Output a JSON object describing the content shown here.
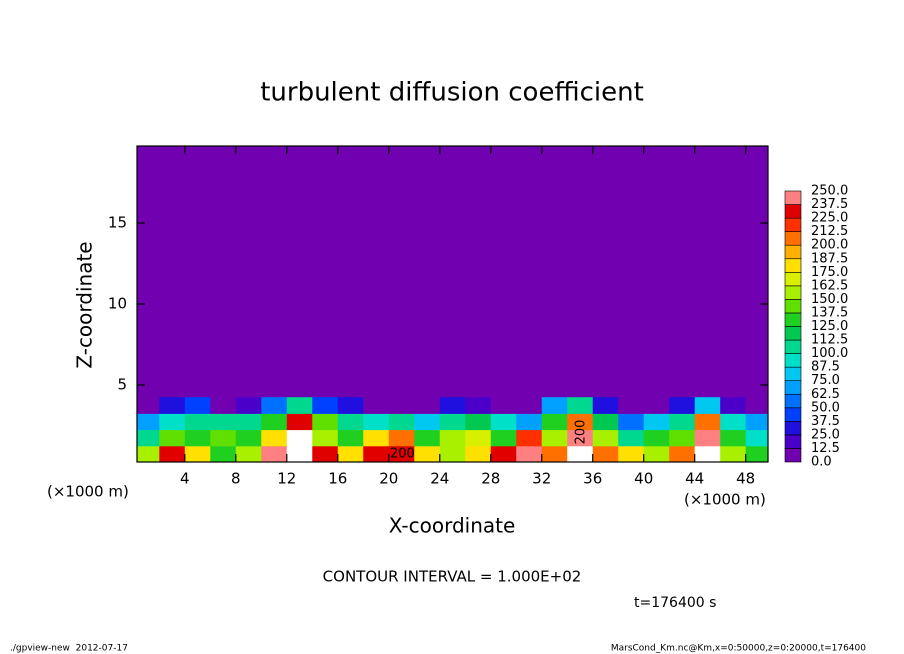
{
  "chart_data": {
    "type": "contour",
    "title": "turbulent diffusion coefficient",
    "xlabel": "X-coordinate",
    "ylabel": "Z-coordinate",
    "x_unit_label": "(×1000 m)",
    "xlim": [
      0.25,
      49.75
    ],
    "ylim": [
      0.25,
      19.75
    ],
    "xticks": [
      4,
      8,
      12,
      16,
      20,
      24,
      28,
      32,
      36,
      40,
      44,
      48
    ],
    "yticks": [
      5,
      10,
      15
    ],
    "levels": [
      {
        "value": 0,
        "label": "0.0"
      },
      12.5,
      {
        "value": 25,
        "label": "25.0"
      },
      37.5,
      {
        "value": 50,
        "label": "50.0"
      },
      62.5,
      {
        "value": 75,
        "label": "75.0"
      },
      87.5,
      {
        "value": 100,
        "label": "100.0"
      },
      112.5,
      {
        "value": 125,
        "label": "125.0"
      },
      137.5,
      {
        "value": 150,
        "label": "150.0"
      },
      162.5,
      {
        "value": 175,
        "label": "175.0"
      },
      187.5,
      {
        "value": 200,
        "label": "200.0"
      },
      212.5,
      {
        "value": 225,
        "label": "225.0"
      },
      237.5,
      {
        "value": 250,
        "label": "250.0"
      }
    ],
    "colors": [
      "#7000b0",
      "#4a00c8",
      "#2010e0",
      "#0040ff",
      "#0070ff",
      "#00a0ff",
      "#00c8f0",
      "#00e0c8",
      "#00d890",
      "#00c850",
      "#20d020",
      "#60e000",
      "#a8f000",
      "#d8f000",
      "#ffe000",
      "#ffb000",
      "#ff7000",
      "#ff3000",
      "#e00000",
      "#ff8080"
    ],
    "above_color": "#ffffff",
    "field": {
      "x": [
        1,
        3,
        5,
        7,
        9,
        11,
        13,
        15,
        17,
        19,
        21,
        23,
        25,
        27,
        29,
        31,
        33,
        35,
        37,
        39,
        41,
        43,
        45,
        47,
        49
      ],
      "z": [
        0.75,
        1.75,
        2.75,
        3.75
      ],
      "values": [
        [
          150,
          225,
          175,
          125,
          150,
          237.5,
          250,
          225,
          175,
          225,
          225,
          175,
          150,
          175,
          225,
          237.5,
          200,
          250,
          200,
          175,
          150,
          200,
          250,
          150,
          125
        ],
        [
          100,
          137.5,
          125,
          137.5,
          125,
          175,
          250,
          150,
          125,
          175,
          200,
          125,
          150,
          162.5,
          125,
          212.5,
          150,
          237.5,
          150,
          100,
          125,
          137.5,
          237.5,
          125,
          87.5
        ],
        [
          62.5,
          87.5,
          100,
          100,
          100,
          125,
          225,
          137.5,
          100,
          87.5,
          100,
          75,
          100,
          112.5,
          87.5,
          62.5,
          125,
          200,
          112.5,
          50,
          75,
          100,
          200,
          87.5,
          62.5
        ],
        [
          0,
          25,
          37.5,
          0,
          12.5,
          50,
          100,
          37.5,
          25,
          0,
          0,
          0,
          25,
          12.5,
          0,
          0,
          62.5,
          100,
          25,
          0,
          0,
          25,
          75,
          12.5,
          0
        ]
      ]
    },
    "contour_labels": [
      200,
      200
    ],
    "contour_interval_text": "CONTOUR INTERVAL = 1.000E+02",
    "time_label": "t=176400 s",
    "footer_left": "./gpview-new  2012-07-17",
    "footer_right": "MarsCond_Km.nc@Km,x=0:50000,z=0:20000,t=176400"
  }
}
